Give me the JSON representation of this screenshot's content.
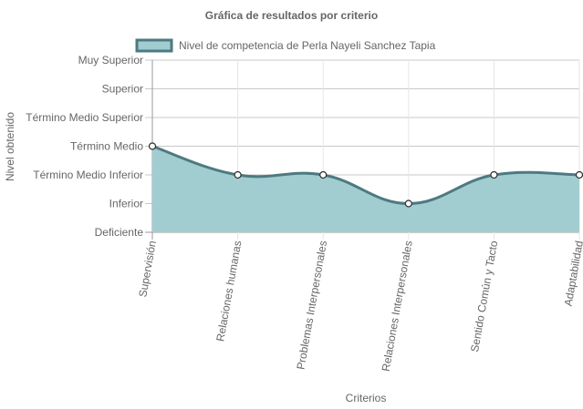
{
  "chart_data": {
    "type": "area",
    "title": "Gráfica de resultados por criterio",
    "xlabel": "Criterios",
    "ylabel": "Nivel obtenido",
    "y_levels": [
      "Deficiente",
      "Inferior",
      "Término Medio Inferior",
      "Término Medio",
      "Término Medio Superior",
      "Superior",
      "Muy Superior"
    ],
    "ylim": [
      0,
      6
    ],
    "categories": [
      "Supervisión",
      "Relaciones humanas",
      "Problemas Interpersonales",
      "Relaciones Interpersonales",
      "Sentido Común y Tacto",
      "Adaptabilidad"
    ],
    "series": [
      {
        "name": "Nivel de competencia de Perla Nayeli Sanchez  Tapia",
        "values": [
          3,
          2,
          2,
          1,
          2,
          2
        ]
      }
    ],
    "grid": true,
    "legend_position": "top",
    "colors": {
      "fill": "#a2cdd0",
      "line": "#4d7a80",
      "grid": "#e6e6e6",
      "axis": "#9a9a9a",
      "text": "#666666"
    }
  }
}
